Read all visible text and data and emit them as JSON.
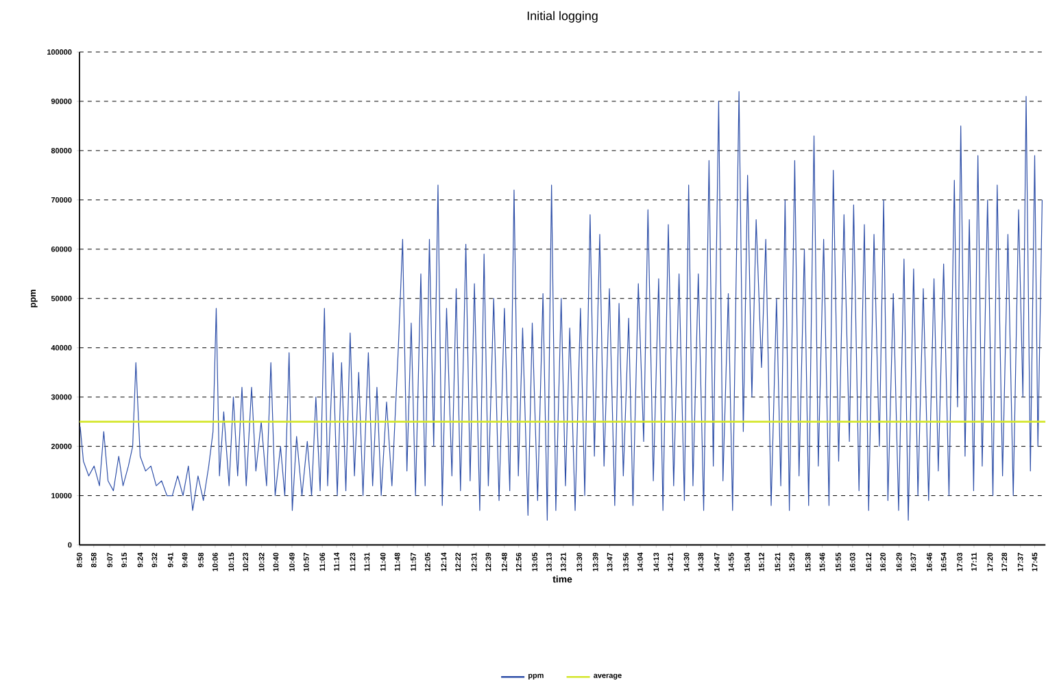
{
  "chart_data": {
    "type": "line",
    "title": "Initial logging",
    "xlabel": "time",
    "ylabel": "ppm",
    "xlim": [
      8.8333,
      17.85
    ],
    "ylim": [
      0,
      100000
    ],
    "yticks": [
      0,
      10000,
      20000,
      30000,
      40000,
      50000,
      60000,
      70000,
      80000,
      90000,
      100000
    ],
    "xticks": [
      {
        "value": 8.8333,
        "label": "8:50"
      },
      {
        "value": 8.9667,
        "label": "8:58"
      },
      {
        "value": 9.1167,
        "label": "9:07"
      },
      {
        "value": 9.25,
        "label": "9:15"
      },
      {
        "value": 9.4,
        "label": "9:24"
      },
      {
        "value": 9.5333,
        "label": "9:32"
      },
      {
        "value": 9.6833,
        "label": "9:41"
      },
      {
        "value": 9.8167,
        "label": "9:49"
      },
      {
        "value": 9.9667,
        "label": "9:58"
      },
      {
        "value": 10.1,
        "label": "10:06"
      },
      {
        "value": 10.25,
        "label": "10:15"
      },
      {
        "value": 10.3833,
        "label": "10:23"
      },
      {
        "value": 10.5333,
        "label": "10:32"
      },
      {
        "value": 10.6667,
        "label": "10:40"
      },
      {
        "value": 10.8167,
        "label": "10:49"
      },
      {
        "value": 10.95,
        "label": "10:57"
      },
      {
        "value": 11.1,
        "label": "11:06"
      },
      {
        "value": 11.2333,
        "label": "11:14"
      },
      {
        "value": 11.3833,
        "label": "11:23"
      },
      {
        "value": 11.5167,
        "label": "11:31"
      },
      {
        "value": 11.6667,
        "label": "11:40"
      },
      {
        "value": 11.8,
        "label": "11:48"
      },
      {
        "value": 11.95,
        "label": "11:57"
      },
      {
        "value": 12.0833,
        "label": "12:05"
      },
      {
        "value": 12.2333,
        "label": "12:14"
      },
      {
        "value": 12.3667,
        "label": "12:22"
      },
      {
        "value": 12.5167,
        "label": "12:31"
      },
      {
        "value": 12.65,
        "label": "12:39"
      },
      {
        "value": 12.8,
        "label": "12:48"
      },
      {
        "value": 12.9333,
        "label": "12:56"
      },
      {
        "value": 13.0833,
        "label": "13:05"
      },
      {
        "value": 13.2167,
        "label": "13:13"
      },
      {
        "value": 13.35,
        "label": "13:21"
      },
      {
        "value": 13.5,
        "label": "13:30"
      },
      {
        "value": 13.65,
        "label": "13:39"
      },
      {
        "value": 13.7833,
        "label": "13:47"
      },
      {
        "value": 13.9333,
        "label": "13:56"
      },
      {
        "value": 14.0667,
        "label": "14:04"
      },
      {
        "value": 14.2167,
        "label": "14:13"
      },
      {
        "value": 14.35,
        "label": "14:21"
      },
      {
        "value": 14.5,
        "label": "14:30"
      },
      {
        "value": 14.6333,
        "label": "14:38"
      },
      {
        "value": 14.7833,
        "label": "14:47"
      },
      {
        "value": 14.9167,
        "label": "14:55"
      },
      {
        "value": 15.0667,
        "label": "15:04"
      },
      {
        "value": 15.2,
        "label": "15:12"
      },
      {
        "value": 15.35,
        "label": "15:21"
      },
      {
        "value": 15.4833,
        "label": "15:29"
      },
      {
        "value": 15.6333,
        "label": "15:38"
      },
      {
        "value": 15.7667,
        "label": "15:46"
      },
      {
        "value": 15.9167,
        "label": "15:55"
      },
      {
        "value": 16.05,
        "label": "16:03"
      },
      {
        "value": 16.2,
        "label": "16:12"
      },
      {
        "value": 16.3333,
        "label": "16:20"
      },
      {
        "value": 16.4833,
        "label": "16:29"
      },
      {
        "value": 16.6167,
        "label": "16:37"
      },
      {
        "value": 16.7667,
        "label": "16:46"
      },
      {
        "value": 16.9,
        "label": "16:54"
      },
      {
        "value": 17.05,
        "label": "17:03"
      },
      {
        "value": 17.1833,
        "label": "17:11"
      },
      {
        "value": 17.3333,
        "label": "17:20"
      },
      {
        "value": 17.4667,
        "label": "17:28"
      },
      {
        "value": 17.6167,
        "label": "17:37"
      },
      {
        "value": 17.75,
        "label": "17:45"
      }
    ],
    "grid": "y",
    "legend": "bottom",
    "marker": "none",
    "series": [
      {
        "name": "ppm",
        "color": "#2e4fa8",
        "x": [
          8.84,
          8.87,
          8.92,
          8.97,
          9.02,
          9.06,
          9.1,
          9.15,
          9.2,
          9.24,
          9.29,
          9.33,
          9.36,
          9.4,
          9.45,
          9.5,
          9.55,
          9.6,
          9.65,
          9.7,
          9.75,
          9.8,
          9.85,
          9.89,
          9.94,
          9.99,
          10.04,
          10.08,
          10.11,
          10.14,
          10.18,
          10.23,
          10.27,
          10.31,
          10.35,
          10.39,
          10.44,
          10.48,
          10.53,
          10.58,
          10.62,
          10.66,
          10.71,
          10.75,
          10.79,
          10.82,
          10.86,
          10.91,
          10.96,
          11.0,
          11.04,
          11.08,
          11.12,
          11.15,
          11.2,
          11.24,
          11.28,
          11.32,
          11.36,
          11.4,
          11.44,
          11.48,
          11.53,
          11.57,
          11.61,
          11.65,
          11.7,
          11.75,
          11.81,
          11.85,
          11.89,
          11.93,
          11.97,
          12.02,
          12.06,
          12.1,
          12.14,
          12.18,
          12.22,
          12.26,
          12.31,
          12.35,
          12.39,
          12.44,
          12.48,
          12.52,
          12.57,
          12.61,
          12.65,
          12.7,
          12.75,
          12.8,
          12.85,
          12.89,
          12.93,
          12.97,
          13.02,
          13.06,
          13.11,
          13.16,
          13.2,
          13.24,
          13.28,
          13.33,
          13.37,
          13.41,
          13.46,
          13.51,
          13.55,
          13.6,
          13.64,
          13.69,
          13.73,
          13.78,
          13.83,
          13.87,
          13.91,
          13.96,
          14.0,
          14.05,
          14.1,
          14.14,
          14.19,
          14.24,
          14.28,
          14.33,
          14.38,
          14.43,
          14.48,
          14.52,
          14.56,
          14.61,
          14.66,
          14.71,
          14.75,
          14.8,
          14.84,
          14.89,
          14.93,
          14.99,
          15.03,
          15.07,
          15.11,
          15.15,
          15.2,
          15.24,
          15.29,
          15.34,
          15.38,
          15.42,
          15.46,
          15.51,
          15.55,
          15.6,
          15.64,
          15.69,
          15.73,
          15.78,
          15.83,
          15.87,
          15.92,
          15.97,
          16.02,
          16.06,
          16.11,
          16.16,
          16.2,
          16.25,
          16.3,
          16.34,
          16.38,
          16.43,
          16.48,
          16.53,
          16.57,
          16.62,
          16.66,
          16.71,
          16.76,
          16.81,
          16.85,
          16.9,
          16.95,
          17.0,
          17.03,
          17.06,
          17.1,
          17.14,
          17.18,
          17.22,
          17.26,
          17.31,
          17.36,
          17.4,
          17.45,
          17.5,
          17.55,
          17.6,
          17.64,
          17.67,
          17.71,
          17.75,
          17.78,
          17.82
        ],
        "values": [
          24000,
          17000,
          14000,
          16000,
          12000,
          23000,
          13000,
          11000,
          18000,
          12000,
          16000,
          20000,
          37000,
          18000,
          15000,
          16000,
          12000,
          13000,
          10000,
          10000,
          14000,
          10000,
          16000,
          7000,
          14000,
          9000,
          16000,
          23000,
          48000,
          14000,
          27000,
          12000,
          30000,
          14000,
          32000,
          12000,
          32000,
          15000,
          25000,
          12000,
          37000,
          10000,
          20000,
          10000,
          39000,
          7000,
          22000,
          10000,
          21000,
          10000,
          30000,
          11000,
          48000,
          12000,
          39000,
          10000,
          37000,
          11000,
          43000,
          14000,
          35000,
          10000,
          39000,
          12000,
          32000,
          10000,
          29000,
          12000,
          40000,
          62000,
          15000,
          45000,
          10000,
          55000,
          12000,
          62000,
          20000,
          73000,
          8000,
          48000,
          14000,
          52000,
          11000,
          61000,
          13000,
          53000,
          7000,
          59000,
          12000,
          50000,
          9000,
          48000,
          11000,
          72000,
          14000,
          44000,
          6000,
          45000,
          9000,
          51000,
          5000,
          73000,
          7000,
          50000,
          12000,
          44000,
          7000,
          48000,
          10000,
          67000,
          18000,
          63000,
          16000,
          52000,
          8000,
          49000,
          14000,
          46000,
          8000,
          53000,
          21000,
          68000,
          13000,
          54000,
          7000,
          65000,
          12000,
          55000,
          9000,
          73000,
          12000,
          55000,
          7000,
          78000,
          16000,
          90000,
          13000,
          51000,
          7000,
          92000,
          23000,
          75000,
          30000,
          66000,
          36000,
          62000,
          8000,
          50000,
          12000,
          70000,
          7000,
          78000,
          14000,
          60000,
          8000,
          83000,
          16000,
          62000,
          8000,
          76000,
          17000,
          67000,
          21000,
          69000,
          11000,
          65000,
          7000,
          63000,
          20000,
          70000,
          9000,
          51000,
          7000,
          58000,
          5000,
          56000,
          10000,
          52000,
          9000,
          54000,
          15000,
          57000,
          10000,
          74000,
          28000,
          85000,
          18000,
          66000,
          11000,
          79000,
          16000,
          70000,
          10000,
          73000,
          14000,
          63000,
          10000,
          68000,
          30000,
          91000,
          15000,
          79000,
          20000,
          70000
        ]
      },
      {
        "name": "average",
        "color": "#d4e62a",
        "x": [
          8.8333,
          17.85
        ],
        "values": [
          25000,
          25000
        ]
      }
    ]
  }
}
